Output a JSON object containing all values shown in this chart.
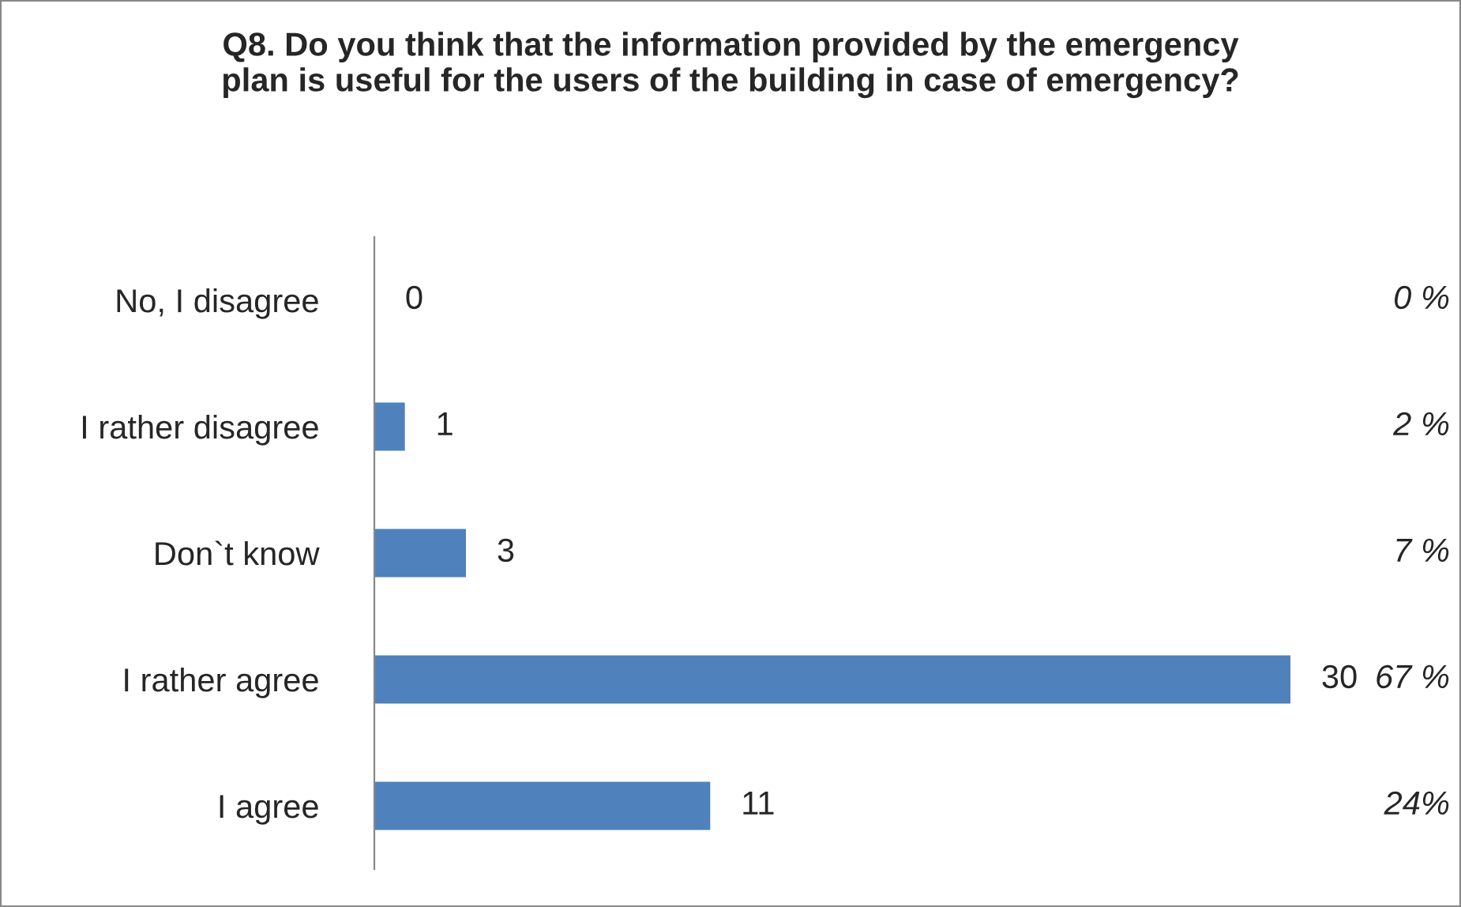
{
  "chart_data": {
    "type": "bar",
    "orientation": "horizontal",
    "title": "Q8. Do you think that the information provided by the emergency\nplan is useful for the users of the building in case of emergency?",
    "categories": [
      "No, I disagree",
      "I rather disagree",
      "Don`t know",
      "I rather agree",
      "I agree"
    ],
    "values": [
      0,
      1,
      3,
      30,
      11
    ],
    "color": "#4f81bd",
    "data_labels": true,
    "grid": false,
    "legend": false,
    "annotations": [
      "0 %",
      "2 %",
      "7 %",
      "67 %",
      "24%"
    ]
  }
}
